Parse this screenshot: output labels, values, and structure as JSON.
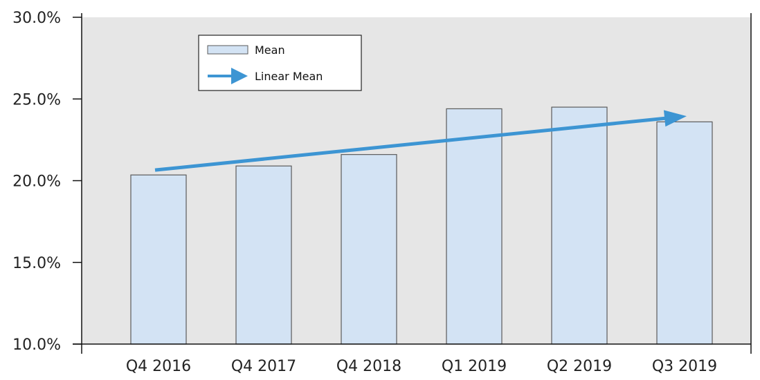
{
  "chart_data": {
    "type": "bar",
    "categories": [
      "Q4 2016",
      "Q4 2017",
      "Q4 2018",
      "Q1 2019",
      "Q2 2019",
      "Q3 2019"
    ],
    "series": [
      {
        "name": "Mean",
        "values": [
          20.35,
          20.9,
          21.6,
          24.4,
          24.5,
          23.6
        ]
      }
    ],
    "trend": {
      "name": "Linear Mean",
      "start": 20.65,
      "end": 23.95
    },
    "ylim": [
      10,
      30
    ],
    "yticks": [
      10,
      15,
      20,
      25,
      30
    ],
    "ytick_labels": [
      "10.0%",
      "15.0%",
      "20.0%",
      "25.0%",
      "30.0%"
    ],
    "title": "",
    "xlabel": "",
    "ylabel": "",
    "legend_position": "top-left",
    "grid": false,
    "colors": {
      "plot_background": "#e6e6e6",
      "bar_fill": "#d3e3f4",
      "bar_stroke": "#5a5a5a",
      "trend": "#3d95d3",
      "axis": "#111111"
    }
  }
}
